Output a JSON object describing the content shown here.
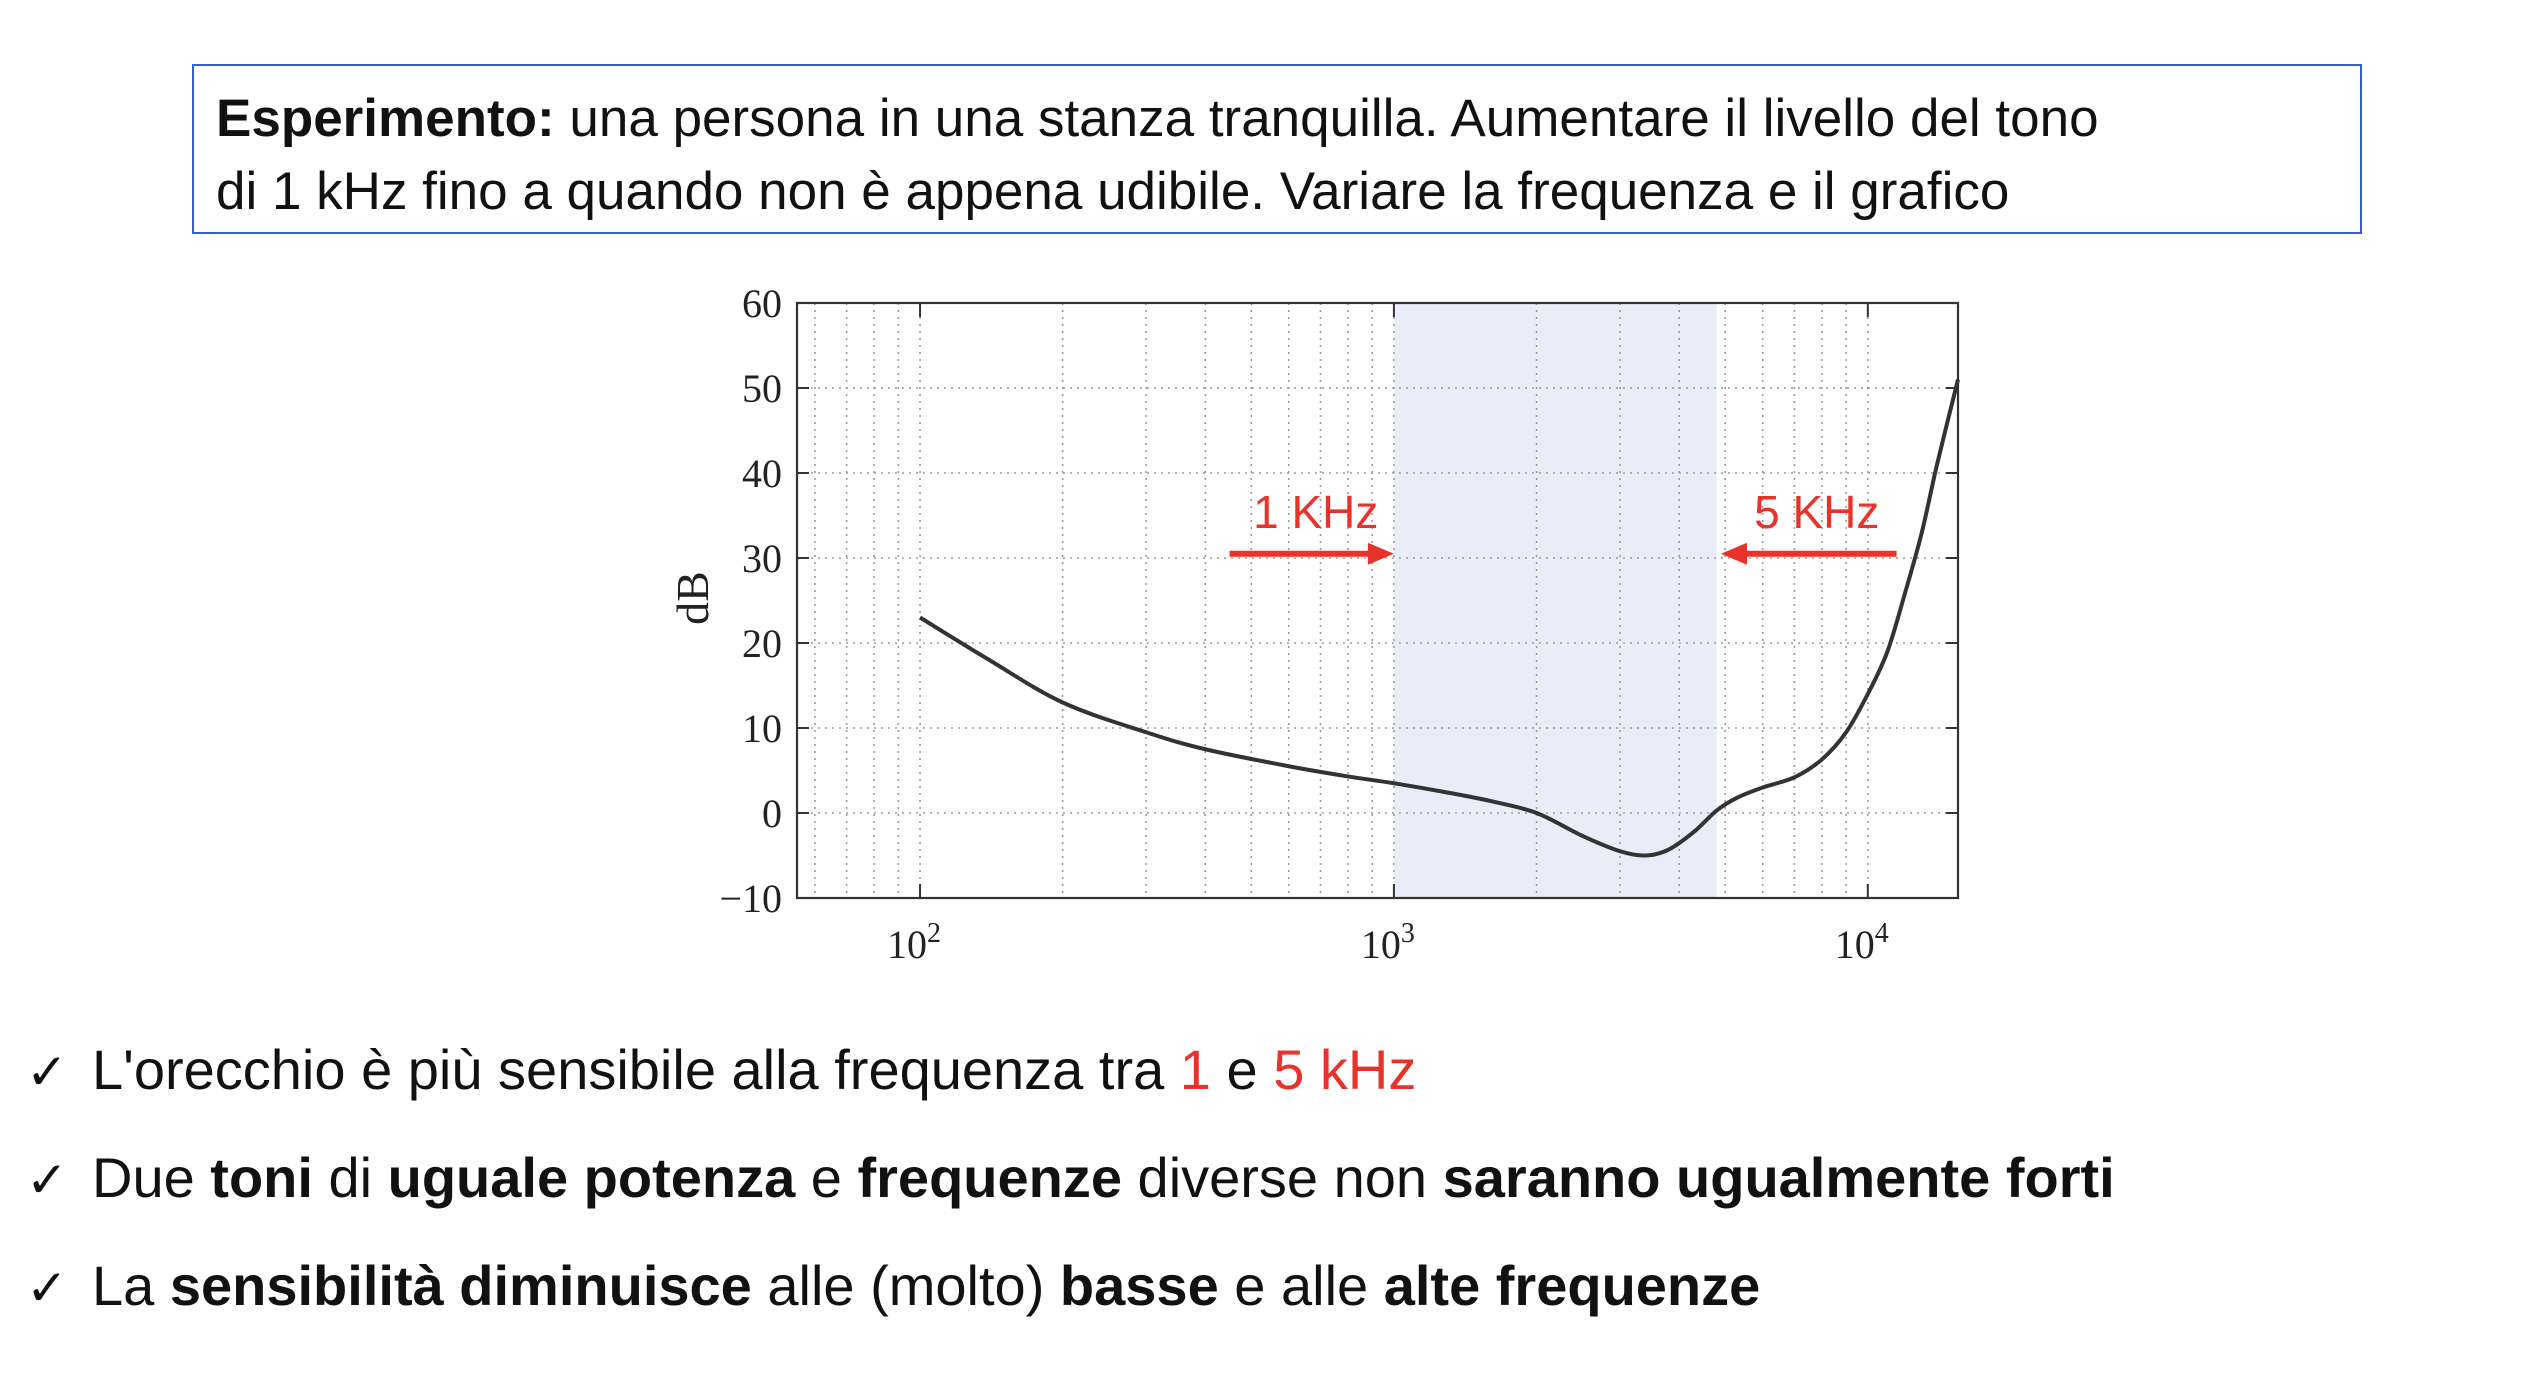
{
  "intro": {
    "bold": "Esperimento:",
    "line1": " una persona in una stanza tranquilla. Aumentare il livello del tono",
    "line2": "di 1 kHz fino a quando non è appena udibile. Variare la frequenza e il grafico"
  },
  "chart_data": {
    "type": "line",
    "x_scale": "log",
    "xlim": [
      55,
      15500
    ],
    "ylim": [
      -10,
      60
    ],
    "ylabel": "dB",
    "yticks": [
      -10,
      0,
      10,
      20,
      30,
      40,
      50,
      60
    ],
    "ytick_labels": [
      "−10",
      "0",
      "10",
      "20",
      "30",
      "40",
      "50",
      "60"
    ],
    "xticks": [
      100,
      1000,
      10000
    ],
    "xtick_base": "10",
    "xtick_exponents": [
      "2",
      "3",
      "4"
    ],
    "grid": true,
    "series": [
      {
        "x": [
          100,
          140,
          200,
          300,
          400,
          600,
          800,
          1000,
          1300,
          1600,
          2000,
          2500,
          3000,
          3400,
          3800,
          4300,
          4800,
          5300,
          6000,
          7000,
          8000,
          9000,
          10000,
          11000,
          12000,
          13000,
          14000,
          15500
        ],
        "y": [
          23,
          18,
          13,
          9.5,
          7.5,
          5.5,
          4.3,
          3.5,
          2.4,
          1.4,
          0,
          -2.7,
          -4.5,
          -5,
          -4.3,
          -2.2,
          0.3,
          1.8,
          3,
          4.2,
          6.3,
          9.5,
          14,
          19,
          26,
          33,
          41,
          51
        ],
        "color": "#333333"
      }
    ],
    "highlight_band": {
      "x_from": 1000,
      "x_to": 4800,
      "color": "#e8edf7"
    },
    "annotations": [
      {
        "text": "1 KHz",
        "arrow_from": 450,
        "arrow_to": 1000,
        "y": 30.5,
        "color": "#e8322a"
      },
      {
        "text": "5 KHz",
        "arrow_from": 11500,
        "arrow_to": 4900,
        "y": 30.5,
        "color": "#e8322a"
      }
    ]
  },
  "bullets": [
    {
      "check": "✓",
      "parts": [
        {
          "t": "L'orecchio è più sensibile alla frequenza tra ",
          "s": ""
        },
        {
          "t": "1",
          "s": "red"
        },
        {
          "t": " e ",
          "s": ""
        },
        {
          "t": "5 kHz",
          "s": "red"
        }
      ]
    },
    {
      "check": "✓",
      "parts": [
        {
          "t": "Due ",
          "s": ""
        },
        {
          "t": "toni",
          "s": "b"
        },
        {
          "t": " di ",
          "s": ""
        },
        {
          "t": "uguale potenza",
          "s": "b"
        },
        {
          "t": " e ",
          "s": ""
        },
        {
          "t": "frequenze",
          "s": "b"
        },
        {
          "t": " diverse non ",
          "s": ""
        },
        {
          "t": "saranno ugualmente forti",
          "s": "b"
        }
      ]
    },
    {
      "check": "✓",
      "parts": [
        {
          "t": "La ",
          "s": ""
        },
        {
          "t": "sensibilità diminuisce",
          "s": "b"
        },
        {
          "t": " alle (molto) ",
          "s": ""
        },
        {
          "t": "basse",
          "s": "b"
        },
        {
          "t": " e alle ",
          "s": ""
        },
        {
          "t": "alte frequenze",
          "s": "b"
        }
      ]
    }
  ]
}
